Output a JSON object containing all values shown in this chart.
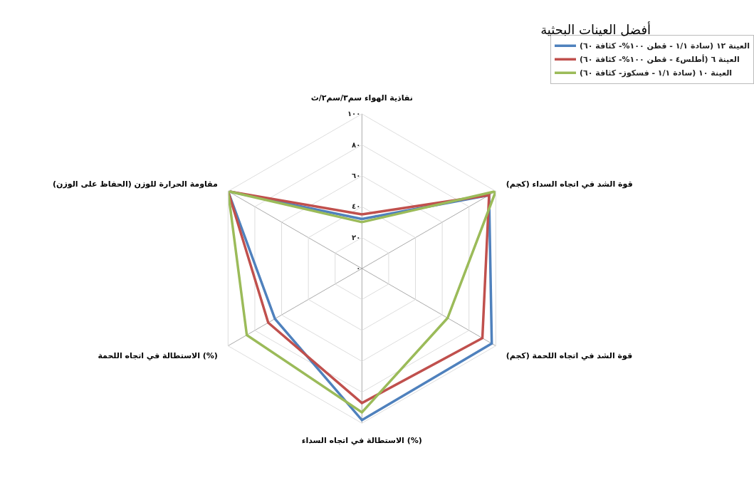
{
  "chart_data": {
    "type": "radar",
    "title": "أفضل العينات البحثية",
    "categories": [
      "نفاذية الهواء سم٣/سم٢/ث",
      "قوة الشد في اتجاه السداء (كجم)",
      "قوة الشد في اتجاه اللحمة (كجم)",
      "الاستطالة في اتجاه السداء (%)",
      "الاستطالة في اتجاه اللحمة (%)",
      "مقاومة الحرارة للوزن (الحفاظ على الوزن)"
    ],
    "series": [
      {
        "name": "(سادة ١/١ - قطن ١٠٠%- كثافة ٦٠) العينة ١٢",
        "color": "#4f81bd",
        "values": [
          32,
          95,
          97,
          98,
          65,
          100
        ]
      },
      {
        "name": "(أطلس٤ - قطن ١٠٠%- كثافة ٦٠) العينة ٦",
        "color": "#c0504d",
        "values": [
          35,
          95,
          90,
          87,
          70,
          100
        ]
      },
      {
        "name": "(سادة ١/١ - فسكوز- كثافة ٦٠) العينة ١٠",
        "color": "#9bbb59",
        "values": [
          30,
          100,
          64,
          93,
          86,
          100
        ]
      }
    ],
    "ylim": [
      0,
      100
    ],
    "yticks": [
      {
        "value": 0,
        "label": "٠"
      },
      {
        "value": 20,
        "label": "٢٠"
      },
      {
        "value": 40,
        "label": "٤٠"
      },
      {
        "value": 60,
        "label": "٦٠"
      },
      {
        "value": 80,
        "label": "٨٠"
      },
      {
        "value": 100,
        "label": "١٠٠"
      }
    ],
    "grid": true,
    "legend": "top right"
  }
}
